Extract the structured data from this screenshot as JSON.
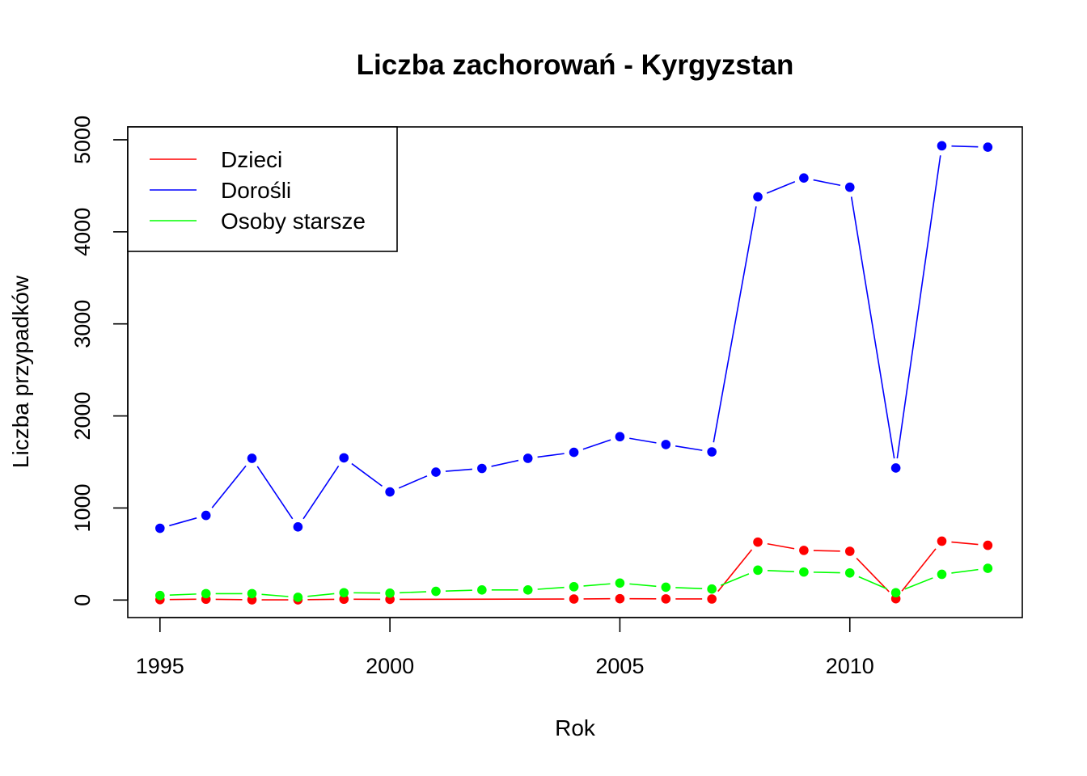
{
  "chart_data": {
    "type": "line",
    "title": "Liczba zachorowań -  Kyrgyzstan",
    "xlabel": "Rok",
    "ylabel": "Liczba przypadków",
    "xlim": [
      1994.3,
      2013.75
    ],
    "ylim": [
      -190,
      5140
    ],
    "xticks": [
      1995,
      2000,
      2005,
      2010
    ],
    "yticks": [
      0,
      1000,
      2000,
      3000,
      4000,
      5000
    ],
    "legend_position": "top-left",
    "grid": false,
    "series": [
      {
        "name": "Dzieci",
        "color": "#ff0000",
        "points": [
          [
            1995,
            5
          ],
          [
            1996,
            10
          ],
          [
            1997,
            3
          ],
          [
            1998,
            3
          ],
          [
            1999,
            10
          ],
          [
            2000,
            8
          ],
          [
            2004,
            12
          ],
          [
            2005,
            15
          ],
          [
            2006,
            13
          ],
          [
            2007,
            12
          ],
          [
            2008,
            630
          ],
          [
            2009,
            540
          ],
          [
            2010,
            530
          ],
          [
            2011,
            15
          ],
          [
            2012,
            640
          ],
          [
            2013,
            595
          ]
        ]
      },
      {
        "name": "Dorośli",
        "color": "#0000ff",
        "points": [
          [
            1995,
            780
          ],
          [
            1996,
            920
          ],
          [
            1997,
            1540
          ],
          [
            1998,
            795
          ],
          [
            1999,
            1545
          ],
          [
            2000,
            1175
          ],
          [
            2001,
            1390
          ],
          [
            2002,
            1430
          ],
          [
            2003,
            1540
          ],
          [
            2004,
            1605
          ],
          [
            2005,
            1775
          ],
          [
            2006,
            1690
          ],
          [
            2007,
            1610
          ],
          [
            2008,
            4380
          ],
          [
            2009,
            4585
          ],
          [
            2010,
            4485
          ],
          [
            2011,
            1435
          ],
          [
            2012,
            4935
          ],
          [
            2013,
            4920
          ]
        ]
      },
      {
        "name": "Osoby starsze",
        "color": "#00ff00",
        "points": [
          [
            1995,
            50
          ],
          [
            1996,
            70
          ],
          [
            1997,
            70
          ],
          [
            1998,
            30
          ],
          [
            1999,
            80
          ],
          [
            2000,
            75
          ],
          [
            2001,
            95
          ],
          [
            2002,
            110
          ],
          [
            2003,
            110
          ],
          [
            2004,
            145
          ],
          [
            2005,
            185
          ],
          [
            2006,
            140
          ],
          [
            2007,
            120
          ],
          [
            2008,
            325
          ],
          [
            2009,
            305
          ],
          [
            2010,
            295
          ],
          [
            2011,
            80
          ],
          [
            2012,
            280
          ],
          [
            2013,
            345
          ]
        ]
      }
    ]
  }
}
